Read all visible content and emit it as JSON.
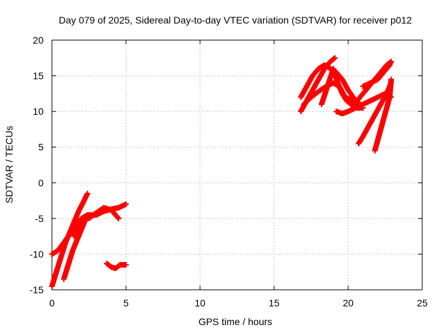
{
  "chart_data": {
    "type": "scatter",
    "title": "Day 079 of 2025, Sidereal Day-to-day VTEC variation (SDTVAR) for receiver p012",
    "xlabel": "GPS time / hours",
    "ylabel": "SDTVAR / TECUs",
    "xlim": [
      0,
      25
    ],
    "ylim": [
      -15,
      20
    ],
    "xticks": [
      "0",
      "5",
      "10",
      "15",
      "20",
      "25"
    ],
    "yticks": [
      "-15",
      "-10",
      "-5",
      "0",
      "5",
      "10",
      "15",
      "20"
    ],
    "grid": true,
    "marker": "+",
    "color": "#ff0000",
    "series": [
      {
        "x": [
          0.0,
          0.4,
          0.8,
          1.2,
          1.6,
          2.0,
          2.4
        ],
        "y": [
          -10.0,
          -9.5,
          -8.4,
          -7.2,
          -6.0,
          -5.0,
          -4.5
        ]
      },
      {
        "x": [
          0.0,
          0.3,
          0.6,
          0.9,
          1.2,
          1.5,
          1.8,
          2.1,
          2.4
        ],
        "y": [
          -14.5,
          -12.5,
          -10.5,
          -8.5,
          -7.0,
          -5.5,
          -4.0,
          -2.8,
          -1.5
        ]
      },
      {
        "x": [
          0.8,
          1.1,
          1.4,
          1.7,
          2.0,
          2.3
        ],
        "y": [
          -13.5,
          -11.5,
          -9.5,
          -8.0,
          -6.5,
          -5.0
        ]
      },
      {
        "x": [
          1.5,
          2.0,
          2.5,
          3.0,
          3.5,
          4.0,
          4.5,
          5.0
        ],
        "y": [
          -7.5,
          -5.5,
          -4.5,
          -4.5,
          -4.0,
          -3.7,
          -3.5,
          -3.0
        ]
      },
      {
        "x": [
          2.5,
          3.0,
          3.5,
          4.0,
          4.5
        ],
        "y": [
          -5.0,
          -4.2,
          -3.5,
          -3.8,
          -5.0
        ]
      },
      {
        "x": [
          3.7,
          4.0,
          4.3,
          4.6,
          5.0
        ],
        "y": [
          -11.3,
          -11.8,
          -12.0,
          -11.5,
          -11.5
        ]
      },
      {
        "x": [
          16.8,
          17.2,
          17.6,
          18.0,
          18.4,
          18.8,
          19.2,
          19.6,
          20.0,
          20.4,
          20.8
        ],
        "y": [
          12.0,
          13.5,
          15.0,
          16.0,
          16.5,
          16.0,
          15.5,
          14.5,
          13.0,
          11.8,
          11.0
        ]
      },
      {
        "x": [
          16.8,
          17.2,
          17.6,
          18.0,
          18.4,
          18.8,
          19.1
        ],
        "y": [
          10.0,
          11.5,
          13.0,
          14.5,
          16.0,
          17.0,
          17.5
        ]
      },
      {
        "x": [
          17.0,
          17.5,
          18.0,
          18.5,
          19.0,
          19.4,
          19.8,
          20.3,
          20.8
        ],
        "y": [
          11.0,
          12.0,
          12.8,
          13.5,
          14.0,
          13.5,
          12.0,
          11.5,
          11.0
        ]
      },
      {
        "x": [
          18.2,
          18.6,
          19.0,
          19.3,
          19.6,
          19.9,
          20.2,
          20.6,
          21.0
        ],
        "y": [
          11.0,
          13.5,
          16.0,
          14.0,
          12.5,
          11.5,
          11.0,
          10.5,
          10.5
        ]
      },
      {
        "x": [
          19.2,
          19.6,
          20.0,
          20.5,
          21.0,
          21.5,
          22.0,
          22.5,
          22.9
        ],
        "y": [
          10.0,
          9.7,
          10.0,
          10.5,
          11.0,
          11.5,
          12.0,
          12.5,
          12.0
        ]
      },
      {
        "x": [
          20.6,
          21.0,
          21.4,
          21.8,
          22.2,
          22.6,
          22.9
        ],
        "y": [
          11.5,
          12.5,
          13.5,
          14.5,
          15.5,
          16.5,
          17.0
        ]
      },
      {
        "x": [
          21.0,
          21.5,
          22.0,
          22.4,
          22.8,
          22.9
        ],
        "y": [
          13.5,
          14.0,
          14.5,
          15.5,
          16.5,
          17.0
        ]
      },
      {
        "x": [
          20.7,
          21.0,
          21.4,
          21.8,
          22.2,
          22.6,
          22.9
        ],
        "y": [
          5.5,
          6.5,
          8.0,
          9.5,
          11.0,
          12.5,
          14.0
        ]
      },
      {
        "x": [
          21.8,
          22.0,
          22.2,
          22.4,
          22.6,
          22.8,
          22.9
        ],
        "y": [
          4.5,
          6.0,
          7.5,
          9.0,
          10.5,
          12.0,
          14.5
        ]
      }
    ]
  }
}
